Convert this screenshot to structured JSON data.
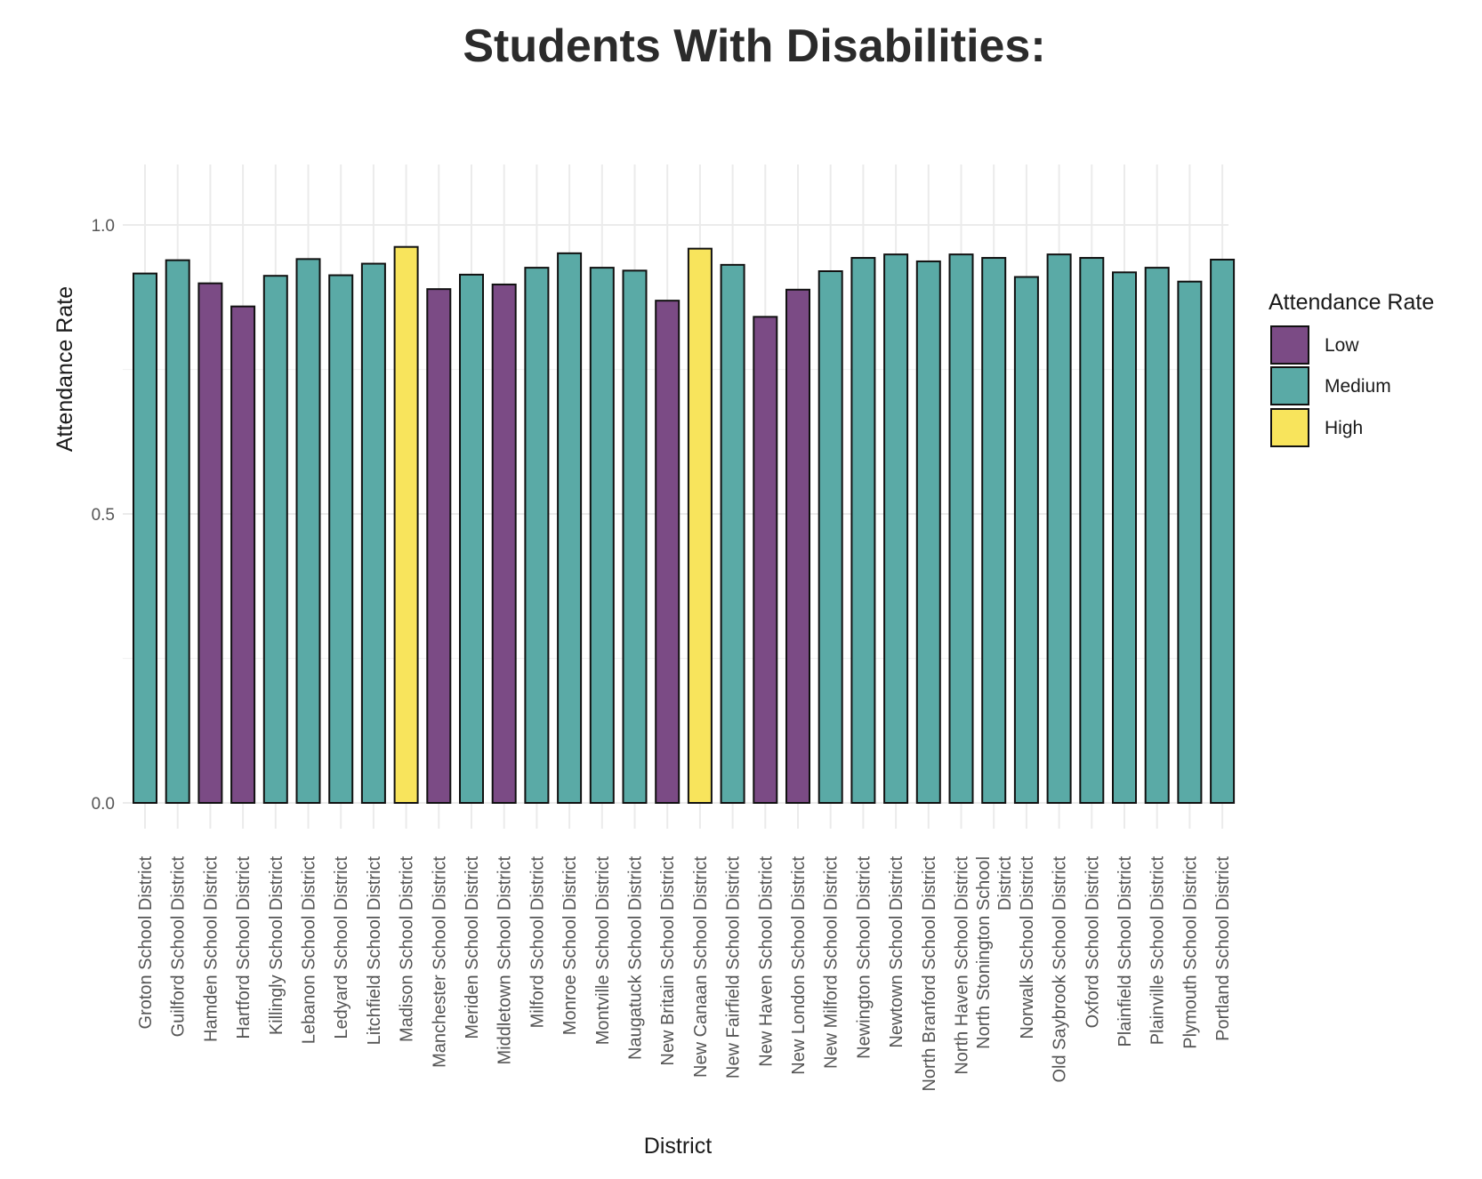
{
  "chart_data": {
    "type": "bar",
    "title": "Students With Disabilities:",
    "xlabel": "District",
    "ylabel": "Attendance Rate",
    "ylim": [
      0,
      1.0
    ],
    "yticks": [
      0.0,
      0.5,
      1.0
    ],
    "ytick_labels": [
      "0.0",
      "0.5",
      "1.0"
    ],
    "grid": true,
    "legend": {
      "title": "Attendance Rate",
      "placement": "right",
      "entries": [
        {
          "label": "Low",
          "color": "#7b4b85"
        },
        {
          "label": "Medium",
          "color": "#5aaaa6"
        },
        {
          "label": "High",
          "color": "#f8e45c"
        }
      ]
    },
    "bars": [
      {
        "category": [
          "Groton School District"
        ],
        "value": 0.916,
        "group": "Medium"
      },
      {
        "category": [
          "Guilford School District"
        ],
        "value": 0.939,
        "group": "Medium"
      },
      {
        "category": [
          "Hamden School District"
        ],
        "value": 0.899,
        "group": "Low"
      },
      {
        "category": [
          "Hartford School District"
        ],
        "value": 0.859,
        "group": "Low"
      },
      {
        "category": [
          "Killingly School District"
        ],
        "value": 0.912,
        "group": "Medium"
      },
      {
        "category": [
          "Lebanon School District"
        ],
        "value": 0.941,
        "group": "Medium"
      },
      {
        "category": [
          "Ledyard School District"
        ],
        "value": 0.913,
        "group": "Medium"
      },
      {
        "category": [
          "Litchfield School District"
        ],
        "value": 0.933,
        "group": "Medium"
      },
      {
        "category": [
          "Madison School District"
        ],
        "value": 0.962,
        "group": "High"
      },
      {
        "category": [
          "Manchester School District"
        ],
        "value": 0.889,
        "group": "Low"
      },
      {
        "category": [
          "Meriden School District"
        ],
        "value": 0.914,
        "group": "Medium"
      },
      {
        "category": [
          "Middletown School District"
        ],
        "value": 0.897,
        "group": "Low"
      },
      {
        "category": [
          "Milford School District"
        ],
        "value": 0.926,
        "group": "Medium"
      },
      {
        "category": [
          "Monroe School District"
        ],
        "value": 0.951,
        "group": "Medium"
      },
      {
        "category": [
          "Montville School District"
        ],
        "value": 0.926,
        "group": "Medium"
      },
      {
        "category": [
          "Naugatuck School District"
        ],
        "value": 0.921,
        "group": "Medium"
      },
      {
        "category": [
          "New Britain School District"
        ],
        "value": 0.869,
        "group": "Low"
      },
      {
        "category": [
          "New Canaan School District"
        ],
        "value": 0.959,
        "group": "High"
      },
      {
        "category": [
          "New Fairfield School District"
        ],
        "value": 0.931,
        "group": "Medium"
      },
      {
        "category": [
          "New Haven School District"
        ],
        "value": 0.841,
        "group": "Low"
      },
      {
        "category": [
          "New London School District"
        ],
        "value": 0.888,
        "group": "Low"
      },
      {
        "category": [
          "New Milford School District"
        ],
        "value": 0.92,
        "group": "Medium"
      },
      {
        "category": [
          "Newington School District"
        ],
        "value": 0.943,
        "group": "Medium"
      },
      {
        "category": [
          "Newtown School District"
        ],
        "value": 0.949,
        "group": "Medium"
      },
      {
        "category": [
          "North Branford School District"
        ],
        "value": 0.937,
        "group": "Medium"
      },
      {
        "category": [
          "North Haven School District"
        ],
        "value": 0.949,
        "group": "Medium"
      },
      {
        "category": [
          "North Stonington School",
          "District"
        ],
        "value": 0.943,
        "group": "Medium"
      },
      {
        "category": [
          "Norwalk School District"
        ],
        "value": 0.91,
        "group": "Medium"
      },
      {
        "category": [
          "Old Saybrook School District"
        ],
        "value": 0.949,
        "group": "Medium"
      },
      {
        "category": [
          "Oxford School District"
        ],
        "value": 0.943,
        "group": "Medium"
      },
      {
        "category": [
          "Plainfield School District"
        ],
        "value": 0.918,
        "group": "Medium"
      },
      {
        "category": [
          "Plainville School District"
        ],
        "value": 0.926,
        "group": "Medium"
      },
      {
        "category": [
          "Plymouth School District"
        ],
        "value": 0.902,
        "group": "Medium"
      },
      {
        "category": [
          "Portland School District"
        ],
        "value": 0.94,
        "group": "Medium"
      }
    ]
  }
}
